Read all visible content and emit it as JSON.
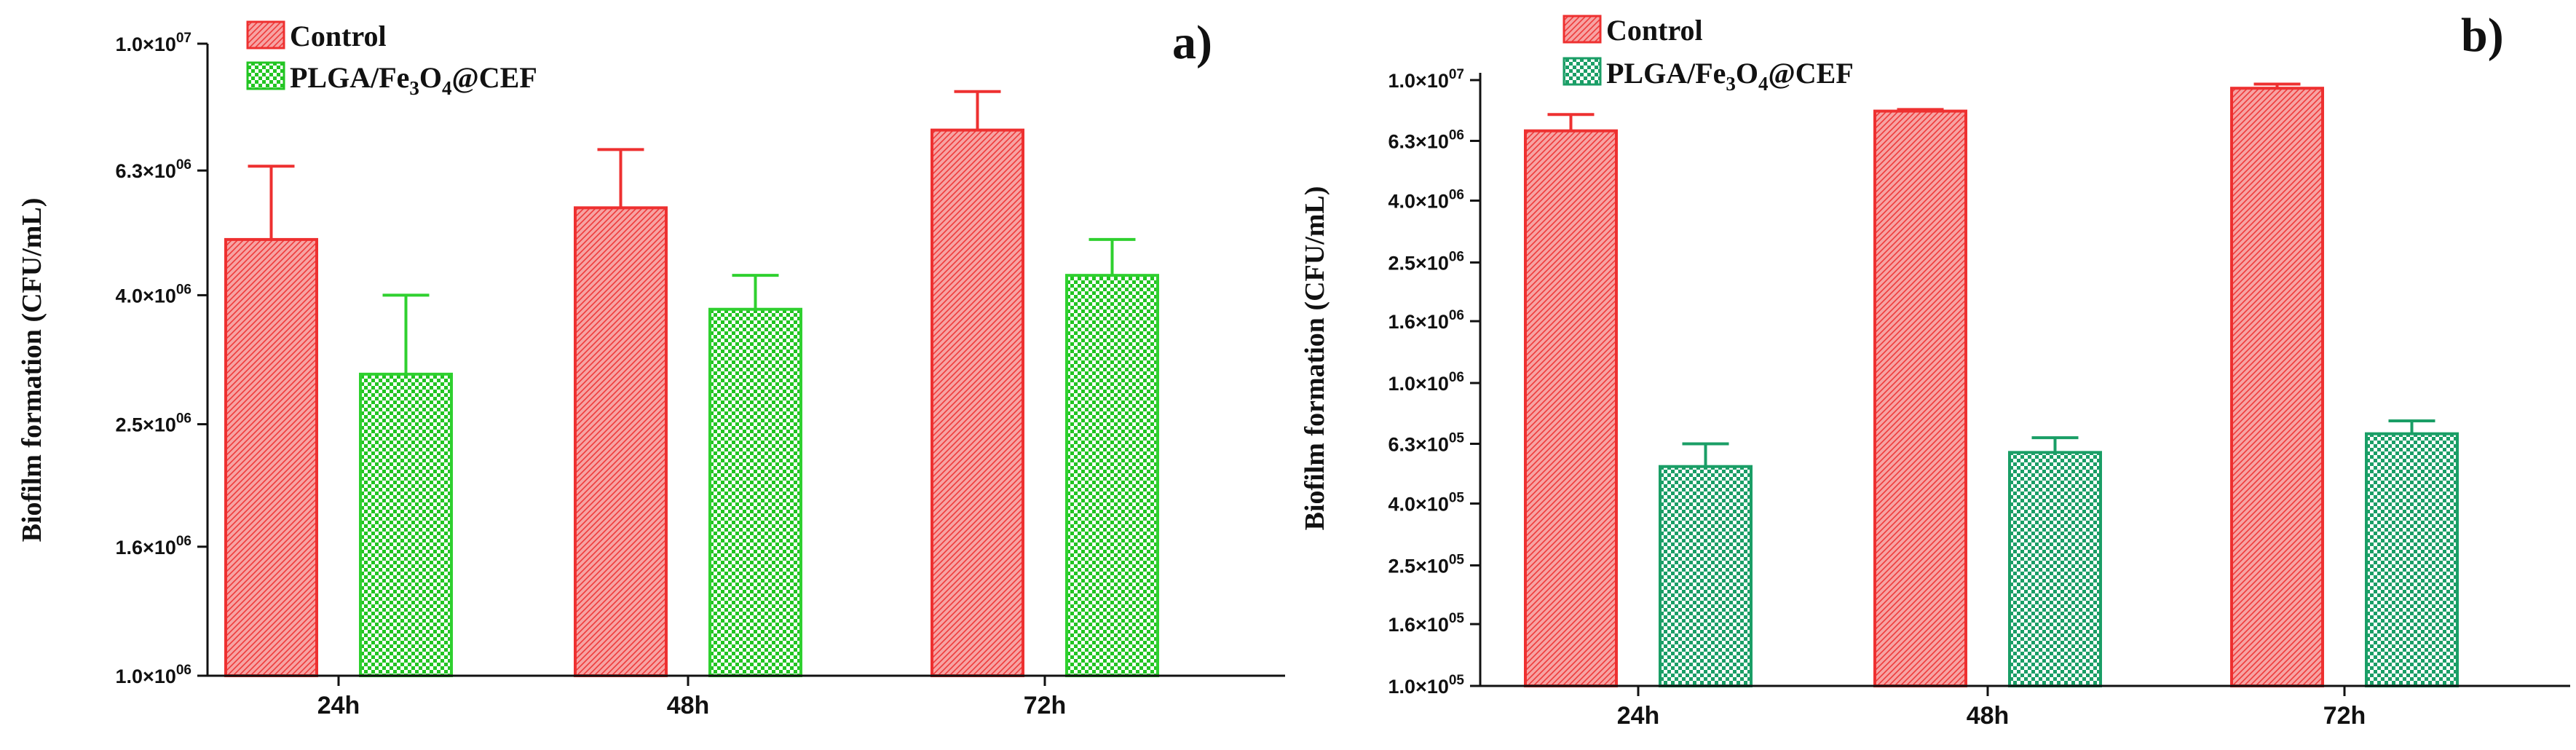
{
  "chart_data": [
    {
      "type": "bar",
      "panel_label": "a)",
      "scale": "log",
      "categories": [
        "24h",
        "48h",
        "72h"
      ],
      "series": [
        {
          "name": "Control",
          "color": "#ee3030",
          "pattern": "diagonal-hatch",
          "values": [
            4900000,
            5500000,
            7300000
          ],
          "error": [
            1500000,
            1300000,
            1100000
          ]
        },
        {
          "name": "PLGA/Fe3O4@CEF",
          "color": "#2fd02f",
          "pattern": "checker",
          "values": [
            3000000,
            3800000,
            4300000
          ],
          "error": [
            1000000,
            500000,
            600000
          ]
        }
      ],
      "ylabel": "Biofilm formation (CFU/mL)",
      "ylim": [
        1000000,
        10000000
      ],
      "yticks": [
        1000000,
        1600000,
        2500000,
        4000000,
        6300000,
        10000000
      ],
      "ytick_labels": [
        "1.0×10",
        "1.6×10",
        "2.5×10",
        "4.0×10",
        "6.3×10",
        "1.0×10"
      ],
      "ytick_exponents": [
        "06",
        "06",
        "06",
        "06",
        "06",
        "07"
      ],
      "xlabel": ""
    },
    {
      "type": "bar",
      "panel_label": "b)",
      "scale": "log",
      "categories": [
        "24h",
        "48h",
        "72h"
      ],
      "series": [
        {
          "name": "Control",
          "color": "#ee3030",
          "pattern": "diagonal-hatch",
          "values": [
            6800000,
            7900000,
            9400000
          ],
          "error": [
            900000,
            100000,
            300000
          ]
        },
        {
          "name": "PLGA/Fe3O4@CEF",
          "color": "#1a9e66",
          "pattern": "checker",
          "values": [
            530000,
            590000,
            680000
          ],
          "error": [
            100000,
            70000,
            70000
          ]
        }
      ],
      "ylabel": "Biofilm formation (CFU/mL)",
      "ylim": [
        100000,
        10000000
      ],
      "yticks": [
        100000,
        160000,
        250000,
        400000,
        630000,
        1000000,
        1600000,
        2500000,
        4000000,
        6300000,
        10000000
      ],
      "ytick_labels": [
        "1.0×10",
        "1.6×10",
        "2.5×10",
        "4.0×10",
        "6.3×10",
        "1.0×10",
        "1.6×10",
        "2.5×10",
        "4.0×10",
        "6.3×10",
        "1.0×10"
      ],
      "ytick_exponents": [
        "05",
        "05",
        "05",
        "05",
        "05",
        "06",
        "06",
        "06",
        "06",
        "06",
        "07"
      ],
      "xlabel": ""
    }
  ],
  "legend": {
    "control_label": "Control",
    "treated_prefix": "PLGA/Fe",
    "treated_sub1": "3",
    "treated_mid": "O",
    "treated_sub2": "4",
    "treated_suffix": "@CEF"
  }
}
